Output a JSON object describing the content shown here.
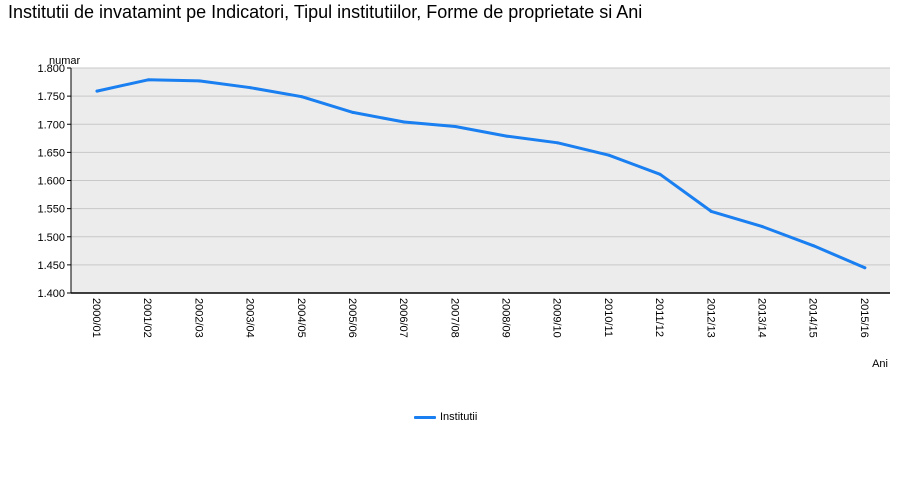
{
  "title": "Institutii de invatamint pe Indicatori, Tipul institutiilor, Forme de proprietate si Ani",
  "colors": {
    "plot_bg": "#ececec",
    "grid": "#c8c8c8",
    "series": "#1a7ff0",
    "axis": "#000000"
  },
  "chart_data": {
    "type": "line",
    "title": "Institutii de invatamint pe Indicatori, Tipul institutiilor, Forme de proprietate si Ani",
    "xlabel": "Ani",
    "ylabel": "numar",
    "ylim": [
      1400,
      1800
    ],
    "yticks": [
      1400,
      1450,
      1500,
      1550,
      1600,
      1650,
      1700,
      1750,
      1800
    ],
    "ytick_labels": [
      "1.400",
      "1.450",
      "1.500",
      "1.550",
      "1.600",
      "1.650",
      "1.700",
      "1.750",
      "1.800"
    ],
    "grid": true,
    "legend_position": "bottom-center",
    "categories": [
      "2000/01",
      "2001/02",
      "2002/03",
      "2003/04",
      "2004/05",
      "2005/06",
      "2006/07",
      "2007/08",
      "2008/09",
      "2009/10",
      "2010/11",
      "2011/12",
      "2012/13",
      "2013/14",
      "2014/15",
      "2015/16"
    ],
    "series": [
      {
        "name": "Institutii",
        "values": [
          1759,
          1779,
          1777,
          1765,
          1749,
          1721,
          1704,
          1696,
          1679,
          1667,
          1645,
          1611,
          1545,
          1518,
          1484,
          1445
        ]
      }
    ]
  }
}
